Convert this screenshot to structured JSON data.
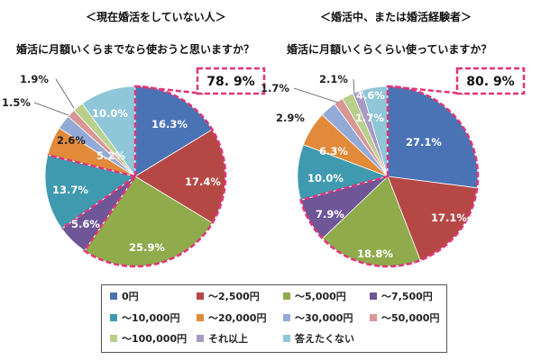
{
  "titles": {
    "left_group": "＜現在婚活をしていない人＞",
    "left_question": "婚活に月額いくらまでなら使おうと思いますか？",
    "right_group": "＜婚活中、または婚活経験者＞",
    "right_question": "婚活に月額いくらくらい使っていますか？"
  },
  "categories": [
    "0円",
    "～2,500円",
    "～5,000円",
    "～7,500円",
    "～10,000円",
    "～20,000円",
    "～30,000円",
    "～50,000円",
    "～100,000円",
    "それ以上",
    "答えたくない"
  ],
  "colors": [
    "#4a73b5",
    "#b54845",
    "#8fab4c",
    "#6e5697",
    "#3f9aaf",
    "#e08a3a",
    "#93a9d6",
    "#d89795",
    "#b9cf8c",
    "#a899c4",
    "#8fc6d8"
  ],
  "chart_data": [
    {
      "type": "pie",
      "title": "婚活に月額いくらまでなら使おうと思いますか？",
      "values": [
        16.3,
        17.4,
        25.9,
        5.6,
        13.7,
        5.2,
        2.6,
        1.5,
        1.9,
        0.0,
        10.0
      ],
      "labels": [
        "16.3%",
        "17.4%",
        "25.9%",
        "5.6%",
        "13.7%",
        "5.2%",
        "2.6%",
        "1.5%",
        "1.9%",
        "",
        "10.0%"
      ],
      "highlight": "78. 9%"
    },
    {
      "type": "pie",
      "title": "婚活に月額いくらくらい使っていますか？",
      "values": [
        27.1,
        17.1,
        18.8,
        7.9,
        10.0,
        6.3,
        2.9,
        1.7,
        2.1,
        1.7,
        4.6
      ],
      "labels": [
        "27.1%",
        "17.1%",
        "18.8%",
        "7.9%",
        "10.0%",
        "6.3%",
        "2.9%",
        "1.7%",
        "2.1%",
        "1.7%",
        "4.6%"
      ],
      "highlight": "80. 9%"
    }
  ]
}
